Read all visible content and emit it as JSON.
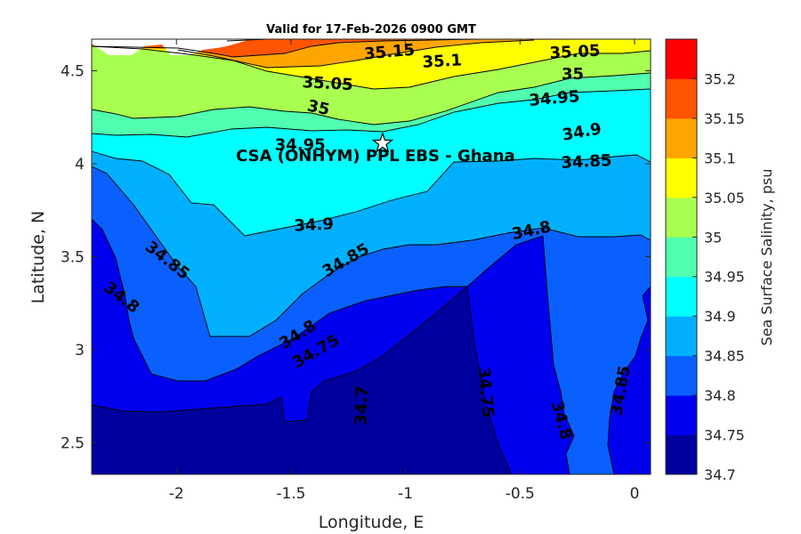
{
  "chart_data": {
    "type": "contour",
    "title": "Valid for 17-Feb-2026 0900 GMT",
    "xlabel": "Longitude, E",
    "ylabel": "Latitude, N",
    "xlim": [
      -2.37,
      0.07
    ],
    "ylim": [
      2.33,
      4.67
    ],
    "xticks": [
      -2,
      -1.5,
      -1,
      -0.5,
      0
    ],
    "xtick_labels": [
      "-2",
      "-1.5",
      "-1",
      "-0.5",
      "0"
    ],
    "yticks": [
      2.5,
      3,
      3.5,
      4,
      4.5
    ],
    "ytick_labels": [
      "2.5",
      "3",
      "3.5",
      "4",
      "4.5"
    ],
    "colorbar": {
      "label": "Sea Surface Salinity, psu",
      "range": [
        34.7,
        35.25
      ],
      "ticks": [
        "34.7",
        "34.75",
        "34.8",
        "34.85",
        "34.9",
        "34.95",
        "35",
        "35.05",
        "35.1",
        "35.15",
        "35.2"
      ],
      "levels": [
        {
          "from": 34.7,
          "to": 34.75,
          "color": "#00009f"
        },
        {
          "from": 34.75,
          "to": 34.8,
          "color": "#0000ef"
        },
        {
          "from": 34.8,
          "to": 34.85,
          "color": "#0a60ff"
        },
        {
          "from": 34.85,
          "to": 34.9,
          "color": "#00b0ff"
        },
        {
          "from": 34.9,
          "to": 34.95,
          "color": "#00ffff"
        },
        {
          "from": 34.95,
          "to": 35.0,
          "color": "#50ffaf"
        },
        {
          "from": 35.0,
          "to": 35.05,
          "color": "#a8ff50"
        },
        {
          "from": 35.05,
          "to": 35.1,
          "color": "#ffff00"
        },
        {
          "from": 35.1,
          "to": 35.15,
          "color": "#ffa500"
        },
        {
          "from": 35.15,
          "to": 35.2,
          "color": "#ff5500"
        },
        {
          "from": 35.2,
          "to": 35.25,
          "color": "#ff0000"
        }
      ]
    },
    "contour_labels": [
      {
        "text": "35.15",
        "lon": -1.07,
        "lat": 4.6,
        "angle": -5
      },
      {
        "text": "35.1",
        "lon": -0.84,
        "lat": 4.55,
        "angle": -3
      },
      {
        "text": "35.05",
        "lon": -0.26,
        "lat": 4.6,
        "angle": -3
      },
      {
        "text": "35.05",
        "lon": -1.34,
        "lat": 4.43,
        "angle": 3
      },
      {
        "text": "35",
        "lon": -0.27,
        "lat": 4.48,
        "angle": 0
      },
      {
        "text": "35",
        "lon": -1.38,
        "lat": 4.3,
        "angle": 12
      },
      {
        "text": "34.95",
        "lon": -0.35,
        "lat": 4.35,
        "angle": -5
      },
      {
        "text": "34.95",
        "lon": -1.46,
        "lat": 4.1,
        "angle": 0
      },
      {
        "text": "34.9",
        "lon": -0.23,
        "lat": 4.17,
        "angle": -10
      },
      {
        "text": "34.85",
        "lon": -0.21,
        "lat": 4.01,
        "angle": -3
      },
      {
        "text": "34.9",
        "lon": -1.4,
        "lat": 3.67,
        "angle": -3
      },
      {
        "text": "34.85",
        "lon": -2.04,
        "lat": 3.48,
        "angle": 38
      },
      {
        "text": "34.85",
        "lon": -1.26,
        "lat": 3.48,
        "angle": -30
      },
      {
        "text": "34.8",
        "lon": -0.45,
        "lat": 3.64,
        "angle": -12
      },
      {
        "text": "34.8",
        "lon": -2.24,
        "lat": 3.28,
        "angle": 38
      },
      {
        "text": "34.8",
        "lon": -1.47,
        "lat": 3.08,
        "angle": -32
      },
      {
        "text": "34.75",
        "lon": -1.39,
        "lat": 2.99,
        "angle": -30
      },
      {
        "text": "34.7",
        "lon": -1.19,
        "lat": 2.7,
        "angle": -88
      },
      {
        "text": "34.75",
        "lon": -0.65,
        "lat": 2.77,
        "angle": 85
      },
      {
        "text": "34.8",
        "lon": -0.32,
        "lat": 2.62,
        "angle": 75
      },
      {
        "text": "34.85",
        "lon": -0.06,
        "lat": 2.78,
        "angle": -80
      }
    ],
    "site": {
      "name": "CSA (ONHYM) PPL EBS  - Ghana",
      "lon": -1.1,
      "lat": 4.11,
      "marker": "star"
    }
  }
}
